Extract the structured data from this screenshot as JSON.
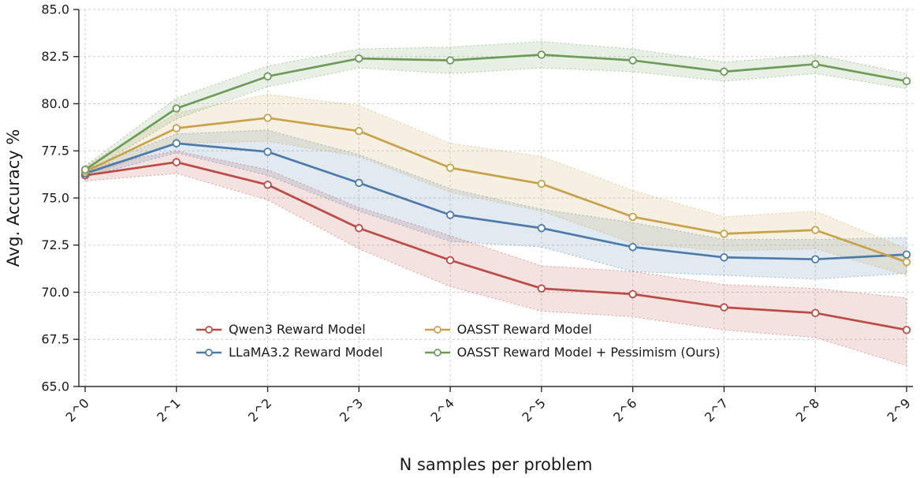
{
  "chart_data": {
    "type": "line",
    "title": "",
    "xlabel": "N samples per problem",
    "ylabel": "Avg. Accuracy %",
    "categories": [
      "2^0",
      "2^1",
      "2^2",
      "2^3",
      "2^4",
      "2^5",
      "2^6",
      "2^7",
      "2^8",
      "2^9"
    ],
    "ylim": [
      65.0,
      85.0
    ],
    "yticks": [
      65.0,
      67.5,
      70.0,
      72.5,
      75.0,
      77.5,
      80.0,
      82.5,
      85.0
    ],
    "grid": true,
    "legend_position": "inside lower-left, 2 columns",
    "series": [
      {
        "id": "qwen3",
        "name": "Qwen3 Reward Model",
        "color": "#bd4b45",
        "values": [
          76.2,
          76.9,
          75.7,
          73.4,
          71.7,
          70.2,
          69.9,
          69.2,
          68.9,
          68.0
        ],
        "band_lower": [
          75.9,
          76.3,
          74.9,
          72.3,
          70.3,
          69.0,
          68.7,
          68.0,
          67.6,
          66.1
        ],
        "band_upper": [
          76.6,
          77.5,
          76.5,
          74.5,
          73.0,
          71.4,
          71.1,
          70.4,
          70.2,
          69.7
        ]
      },
      {
        "id": "llama32",
        "name": "LLaMA3.2 Reward Model",
        "color": "#4c7aa9",
        "values": [
          76.3,
          77.9,
          77.45,
          75.8,
          74.1,
          73.4,
          72.4,
          71.85,
          71.75,
          72.0
        ],
        "band_lower": [
          76.1,
          77.4,
          76.2,
          74.3,
          72.7,
          72.4,
          71.1,
          70.9,
          70.7,
          71.0
        ],
        "band_upper": [
          76.5,
          78.4,
          78.6,
          77.3,
          75.5,
          74.4,
          73.7,
          72.8,
          72.8,
          72.9
        ]
      },
      {
        "id": "oasst",
        "name": "OASST Reward Model",
        "color": "#c7a24b",
        "values": [
          76.4,
          78.7,
          79.25,
          78.55,
          76.6,
          75.75,
          74.0,
          73.1,
          73.3,
          71.6
        ],
        "band_lower": [
          76.1,
          77.9,
          78.0,
          77.2,
          75.3,
          74.3,
          72.6,
          72.2,
          72.3,
          70.9
        ],
        "band_upper": [
          76.7,
          79.5,
          80.5,
          79.9,
          77.9,
          77.2,
          75.4,
          74.0,
          74.3,
          72.3
        ]
      },
      {
        "id": "oasst-pessimism",
        "name": "OASST Reward Model + Pessimism (Ours)",
        "color": "#6d9c58",
        "values": [
          76.5,
          79.75,
          81.45,
          82.4,
          82.3,
          82.6,
          82.3,
          81.7,
          82.1,
          81.2
        ],
        "band_lower": [
          76.3,
          79.2,
          80.9,
          81.9,
          81.6,
          81.9,
          81.7,
          81.2,
          81.6,
          80.8
        ],
        "band_upper": [
          76.7,
          80.3,
          82.0,
          82.9,
          83.0,
          83.3,
          82.9,
          82.2,
          82.6,
          81.6
        ]
      }
    ]
  }
}
